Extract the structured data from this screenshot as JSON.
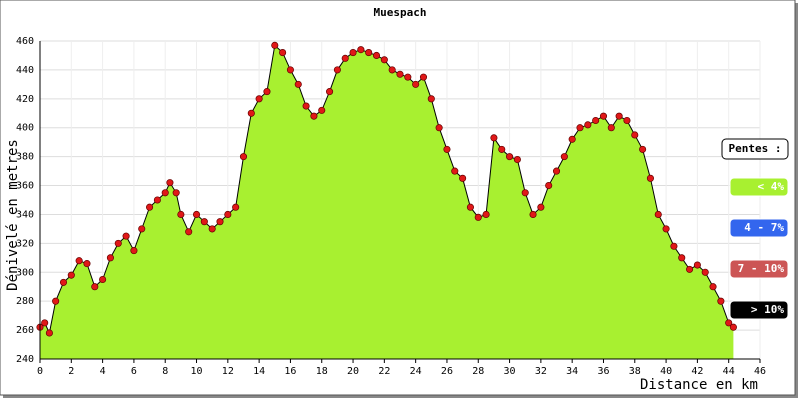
{
  "chart_data": {
    "type": "area",
    "title": "Muespach",
    "ylabel": "Dénivelé en metres",
    "xlabel": "Distance en km",
    "x": [
      0,
      0.3,
      0.6,
      1,
      1.5,
      2,
      2.5,
      3,
      3.5,
      4,
      4.5,
      5,
      5.5,
      6,
      6.5,
      7,
      7.5,
      8,
      8.3,
      8.7,
      9,
      9.5,
      10,
      10.5,
      11,
      11.5,
      12,
      12.5,
      13,
      13.5,
      14,
      14.5,
      15,
      15.5,
      16,
      16.5,
      17,
      17.5,
      18,
      18.5,
      19,
      19.5,
      20,
      20.5,
      21,
      21.5,
      22,
      22.5,
      23,
      23.5,
      24,
      24.5,
      25,
      25.5,
      26,
      26.5,
      27,
      27.5,
      28,
      28.5,
      29,
      29.5,
      30,
      30.5,
      31,
      31.5,
      32,
      32.5,
      33,
      33.5,
      34,
      34.5,
      35,
      35.5,
      36,
      36.5,
      37,
      37.5,
      38,
      38.5,
      39,
      39.5,
      40,
      40.5,
      41,
      41.5,
      42,
      42.5,
      43,
      43.5,
      44,
      44.3
    ],
    "y": [
      262,
      265,
      258,
      280,
      293,
      298,
      308,
      306,
      290,
      295,
      310,
      320,
      325,
      315,
      330,
      345,
      350,
      355,
      362,
      355,
      340,
      328,
      340,
      335,
      330,
      335,
      340,
      345,
      380,
      410,
      420,
      425,
      457,
      452,
      440,
      430,
      415,
      408,
      412,
      425,
      440,
      448,
      452,
      454,
      452,
      450,
      447,
      440,
      437,
      435,
      430,
      435,
      420,
      400,
      385,
      370,
      365,
      345,
      338,
      340,
      393,
      385,
      380,
      378,
      355,
      340,
      345,
      360,
      370,
      380,
      392,
      400,
      402,
      405,
      408,
      400,
      408,
      405,
      395,
      385,
      365,
      340,
      330,
      318,
      310,
      302,
      305,
      300,
      290,
      280,
      265,
      262
    ],
    "fill_color": "#a8f030",
    "point_color": "#e01818",
    "xlim": [
      0,
      46
    ],
    "ylim": [
      240,
      460
    ],
    "xticks": [
      0,
      2,
      4,
      6,
      8,
      10,
      12,
      14,
      16,
      18,
      20,
      22,
      24,
      26,
      28,
      30,
      32,
      34,
      36,
      38,
      40,
      42,
      44,
      46
    ],
    "yticks": [
      240,
      260,
      280,
      300,
      320,
      340,
      360,
      380,
      400,
      420,
      440,
      460
    ],
    "grid": true,
    "legend": {
      "title": "Pentes :",
      "items": [
        {
          "label": "< 4%",
          "color": "#a8f030"
        },
        {
          "label": "4 - 7%",
          "color": "#3366ee"
        },
        {
          "label": "7 - 10%",
          "color": "#cc5555"
        },
        {
          "label": "> 10%",
          "color": "#000000"
        }
      ]
    }
  }
}
